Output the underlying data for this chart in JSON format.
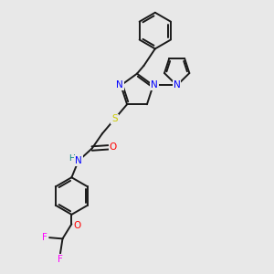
{
  "background_color": "#e8e8e8",
  "bond_color": "#1a1a1a",
  "atom_colors": {
    "N": "#0000ff",
    "O": "#ff0000",
    "S": "#cccc00",
    "F": "#ff00ff",
    "H": "#008080",
    "C": "#1a1a1a"
  },
  "figsize": [
    3.0,
    3.0
  ],
  "dpi": 100,
  "xlim": [
    -4.5,
    4.5
  ],
  "ylim": [
    -7.5,
    4.5
  ]
}
